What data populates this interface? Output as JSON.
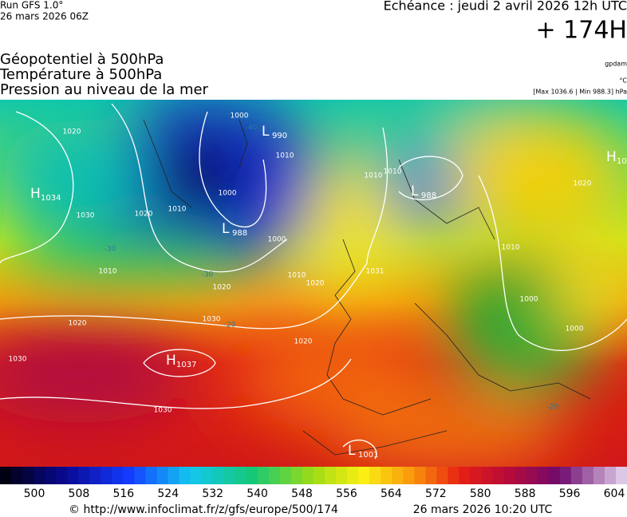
{
  "header": {
    "run": "Run GFS 1.0°",
    "date": "26 mars 2026 06Z",
    "echeance": "Echéance : jeudi 2 avril 2026 12h UTC",
    "lead": "+ 174H"
  },
  "titles": [
    "Géopotentiel à 500hPa",
    "Température à 500hPa",
    "Pression au niveau de la mer"
  ],
  "units": {
    "geopotential": "gpdam",
    "temperature": "°C",
    "pressure": "[Max 1036.6 | Min 988.3] hPa"
  },
  "centers": [
    {
      "letter": "H",
      "value": "1034"
    },
    {
      "letter": "L",
      "value": "990"
    },
    {
      "letter": "L",
      "value": "988"
    },
    {
      "letter": "L",
      "value": "988"
    },
    {
      "letter": "H",
      "value": "1037"
    },
    {
      "letter": "L",
      "value": "1001"
    },
    {
      "letter": "H",
      "value": "10"
    }
  ],
  "isobar_labels": [
    "1020",
    "1030",
    "1020",
    "1010",
    "1020",
    "1030",
    "1030",
    "1020",
    "1030",
    "1020",
    "1000",
    "1000",
    "1010",
    "1010",
    "1000",
    "1010",
    "1020",
    "1010",
    "1010",
    "1031",
    "1020",
    "1010",
    "1000",
    "1000"
  ],
  "temperature_labels": [
    "-40",
    "-30",
    "-30",
    "-20",
    "-20"
  ],
  "colorbar": {
    "labels": [
      "500",
      "508",
      "516",
      "524",
      "532",
      "540",
      "548",
      "556",
      "564",
      "572",
      "580",
      "588",
      "596",
      "604"
    ]
  },
  "footer": {
    "source": "© http://www.infoclimat.fr/z/gfs/europe/500/174",
    "generated": "26 mars 2026 10:20 UTC"
  }
}
